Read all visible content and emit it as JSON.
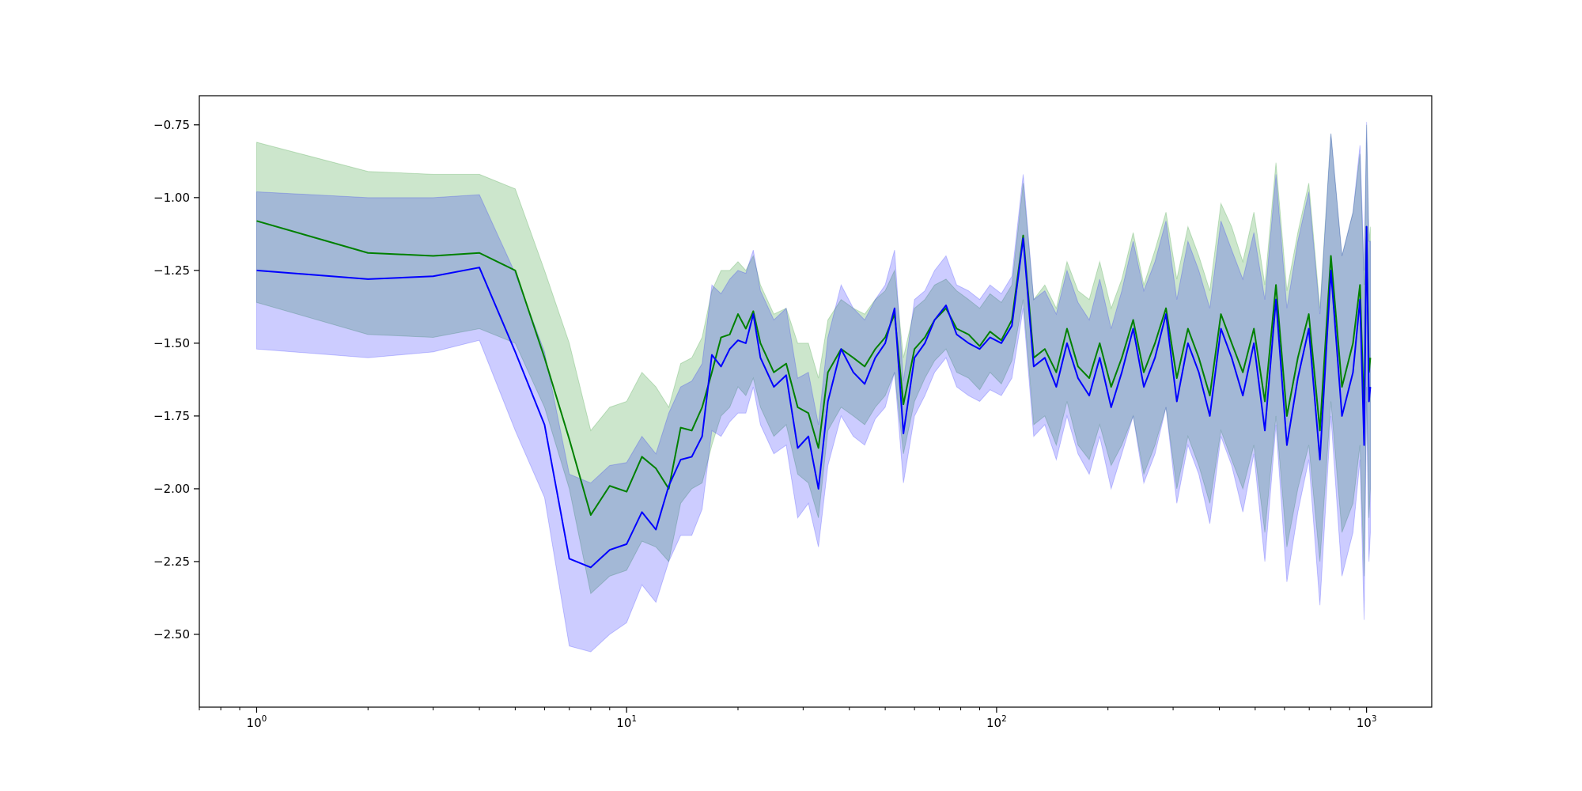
{
  "colors": {
    "series_a_line": "#008000",
    "series_a_band": "#008000",
    "series_b_line": "#0000ff",
    "series_b_band": "#0000ff",
    "axes": "#000000",
    "background": "#ffffff"
  },
  "chart_data": {
    "type": "line",
    "title": "",
    "xlabel": "",
    "ylabel": "",
    "xscale": "log",
    "xlim": [
      0.7,
      1500
    ],
    "ylim": [
      -2.75,
      -0.65
    ],
    "grid": false,
    "legend": "none",
    "x_ticks": [
      {
        "value": 1,
        "base": "10",
        "exp": "0"
      },
      {
        "value": 10,
        "base": "10",
        "exp": "1"
      },
      {
        "value": 100,
        "base": "10",
        "exp": "2"
      },
      {
        "value": 1000,
        "base": "10",
        "exp": "3"
      }
    ],
    "y_ticks": [
      {
        "value": -0.75,
        "label": "−0.75"
      },
      {
        "value": -1.0,
        "label": "−1.00"
      },
      {
        "value": -1.25,
        "label": "−1.25"
      },
      {
        "value": -1.5,
        "label": "−1.50"
      },
      {
        "value": -1.75,
        "label": "−1.75"
      },
      {
        "value": -2.0,
        "label": "−2.00"
      },
      {
        "value": -2.25,
        "label": "−2.25"
      },
      {
        "value": -2.5,
        "label": "−2.50"
      }
    ],
    "series": [
      {
        "color": "#008000",
        "x": [
          1,
          2,
          3,
          4,
          5,
          6,
          7,
          8,
          9,
          10,
          11,
          12,
          13,
          14,
          15,
          16,
          17,
          18,
          19,
          20,
          21,
          22,
          23,
          25,
          27,
          29,
          31,
          33,
          35,
          38,
          41,
          44,
          47,
          50,
          53,
          56,
          60,
          64,
          68,
          73,
          78,
          84,
          90,
          96,
          103,
          110,
          118,
          126,
          135,
          145,
          155,
          166,
          178,
          190,
          204,
          218,
          234,
          250,
          268,
          287,
          307,
          329,
          352,
          377,
          404,
          432,
          463,
          496,
          531,
          569,
          609,
          652,
          698,
          748,
          801,
          858,
          919,
          960,
          985,
          1000,
          1015,
          1024
        ],
        "y": [
          -1.08,
          -1.19,
          -1.2,
          -1.19,
          -1.25,
          -1.55,
          -1.83,
          -2.09,
          -1.99,
          -2.01,
          -1.89,
          -1.93,
          -2.0,
          -1.79,
          -1.8,
          -1.72,
          -1.6,
          -1.48,
          -1.47,
          -1.4,
          -1.45,
          -1.39,
          -1.5,
          -1.6,
          -1.57,
          -1.72,
          -1.74,
          -1.86,
          -1.6,
          -1.52,
          -1.55,
          -1.58,
          -1.52,
          -1.48,
          -1.4,
          -1.71,
          -1.52,
          -1.48,
          -1.42,
          -1.38,
          -1.45,
          -1.47,
          -1.51,
          -1.46,
          -1.49,
          -1.42,
          -1.13,
          -1.55,
          -1.52,
          -1.6,
          -1.45,
          -1.58,
          -1.62,
          -1.5,
          -1.65,
          -1.55,
          -1.42,
          -1.6,
          -1.5,
          -1.38,
          -1.62,
          -1.45,
          -1.55,
          -1.68,
          -1.4,
          -1.5,
          -1.6,
          -1.45,
          -1.7,
          -1.3,
          -1.75,
          -1.55,
          -1.4,
          -1.8,
          -1.2,
          -1.65,
          -1.5,
          -1.3,
          -1.75,
          -1.1,
          -1.6,
          -1.55
        ],
        "lower": [
          -1.36,
          -1.47,
          -1.48,
          -1.45,
          -1.5,
          -1.72,
          -2.0,
          -2.36,
          -2.3,
          -2.28,
          -2.18,
          -2.2,
          -2.25,
          -2.05,
          -2.0,
          -1.98,
          -1.85,
          -1.75,
          -1.72,
          -1.65,
          -1.68,
          -1.62,
          -1.72,
          -1.82,
          -1.78,
          -1.95,
          -1.98,
          -2.1,
          -1.8,
          -1.72,
          -1.75,
          -1.78,
          -1.72,
          -1.68,
          -1.6,
          -1.88,
          -1.7,
          -1.62,
          -1.56,
          -1.52,
          -1.6,
          -1.62,
          -1.66,
          -1.6,
          -1.64,
          -1.56,
          -1.35,
          -1.78,
          -1.75,
          -1.85,
          -1.7,
          -1.85,
          -1.9,
          -1.78,
          -1.92,
          -1.85,
          -1.75,
          -1.95,
          -1.85,
          -1.72,
          -2.0,
          -1.82,
          -1.92,
          -2.05,
          -1.8,
          -1.9,
          -2.0,
          -1.85,
          -2.15,
          -1.75,
          -2.2,
          -2.0,
          -1.85,
          -2.25,
          -1.7,
          -2.15,
          -2.05,
          -1.85,
          -2.3,
          -1.65,
          -2.1,
          -2.0
        ],
        "upper": [
          -0.81,
          -0.91,
          -0.92,
          -0.92,
          -0.97,
          -1.25,
          -1.5,
          -1.8,
          -1.72,
          -1.7,
          -1.6,
          -1.65,
          -1.72,
          -1.57,
          -1.55,
          -1.48,
          -1.32,
          -1.25,
          -1.25,
          -1.22,
          -1.25,
          -1.2,
          -1.3,
          -1.4,
          -1.38,
          -1.5,
          -1.5,
          -1.62,
          -1.42,
          -1.35,
          -1.38,
          -1.4,
          -1.35,
          -1.32,
          -1.25,
          -1.55,
          -1.38,
          -1.35,
          -1.3,
          -1.28,
          -1.32,
          -1.35,
          -1.38,
          -1.33,
          -1.36,
          -1.3,
          -0.95,
          -1.35,
          -1.3,
          -1.38,
          -1.22,
          -1.32,
          -1.35,
          -1.22,
          -1.38,
          -1.28,
          -1.12,
          -1.3,
          -1.18,
          -1.05,
          -1.28,
          -1.1,
          -1.2,
          -1.32,
          -1.02,
          -1.1,
          -1.22,
          -1.05,
          -1.3,
          -0.88,
          -1.32,
          -1.12,
          -0.95,
          -1.38,
          -0.78,
          -1.2,
          -1.05,
          -0.85,
          -1.3,
          -0.75,
          -1.15,
          -1.1
        ]
      },
      {
        "color": "#0000ff",
        "x": [
          1,
          2,
          3,
          4,
          5,
          6,
          7,
          8,
          9,
          10,
          11,
          12,
          13,
          14,
          15,
          16,
          17,
          18,
          19,
          20,
          21,
          22,
          23,
          25,
          27,
          29,
          31,
          33,
          35,
          38,
          41,
          44,
          47,
          50,
          53,
          56,
          60,
          64,
          68,
          73,
          78,
          84,
          90,
          96,
          103,
          110,
          118,
          126,
          135,
          145,
          155,
          166,
          178,
          190,
          204,
          218,
          234,
          250,
          268,
          287,
          307,
          329,
          352,
          377,
          404,
          432,
          463,
          496,
          531,
          569,
          609,
          652,
          698,
          748,
          801,
          858,
          919,
          960,
          985,
          1000,
          1015,
          1024
        ],
        "y": [
          -1.25,
          -1.28,
          -1.27,
          -1.24,
          -1.53,
          -1.78,
          -2.24,
          -2.27,
          -2.21,
          -2.19,
          -2.08,
          -2.14,
          -1.99,
          -1.9,
          -1.89,
          -1.82,
          -1.54,
          -1.58,
          -1.52,
          -1.49,
          -1.5,
          -1.4,
          -1.55,
          -1.65,
          -1.61,
          -1.86,
          -1.82,
          -2.0,
          -1.7,
          -1.52,
          -1.6,
          -1.64,
          -1.55,
          -1.5,
          -1.38,
          -1.81,
          -1.55,
          -1.5,
          -1.42,
          -1.37,
          -1.47,
          -1.5,
          -1.52,
          -1.48,
          -1.5,
          -1.44,
          -1.14,
          -1.58,
          -1.55,
          -1.65,
          -1.5,
          -1.62,
          -1.68,
          -1.55,
          -1.72,
          -1.6,
          -1.45,
          -1.65,
          -1.55,
          -1.4,
          -1.7,
          -1.5,
          -1.6,
          -1.75,
          -1.45,
          -1.55,
          -1.68,
          -1.5,
          -1.8,
          -1.35,
          -1.85,
          -1.62,
          -1.45,
          -1.9,
          -1.25,
          -1.75,
          -1.6,
          -1.35,
          -1.85,
          -1.1,
          -1.7,
          -1.65
        ],
        "lower": [
          -1.52,
          -1.55,
          -1.53,
          -1.49,
          -1.8,
          -2.03,
          -2.54,
          -2.56,
          -2.5,
          -2.46,
          -2.33,
          -2.39,
          -2.25,
          -2.16,
          -2.16,
          -2.07,
          -1.8,
          -1.82,
          -1.77,
          -1.74,
          -1.74,
          -1.65,
          -1.78,
          -1.88,
          -1.85,
          -2.1,
          -2.05,
          -2.2,
          -1.92,
          -1.75,
          -1.82,
          -1.85,
          -1.76,
          -1.72,
          -1.6,
          -1.98,
          -1.75,
          -1.68,
          -1.6,
          -1.55,
          -1.65,
          -1.68,
          -1.7,
          -1.66,
          -1.68,
          -1.62,
          -1.38,
          -1.82,
          -1.78,
          -1.9,
          -1.75,
          -1.88,
          -1.95,
          -1.82,
          -2.0,
          -1.88,
          -1.75,
          -1.98,
          -1.88,
          -1.72,
          -2.05,
          -1.85,
          -1.95,
          -2.12,
          -1.82,
          -1.92,
          -2.08,
          -1.88,
          -2.25,
          -1.78,
          -2.32,
          -2.08,
          -1.9,
          -2.4,
          -1.75,
          -2.3,
          -2.15,
          -1.9,
          -2.45,
          -1.7,
          -2.25,
          -2.15
        ],
        "upper": [
          -0.98,
          -1.0,
          -1.0,
          -0.99,
          -1.26,
          -1.53,
          -1.95,
          -1.98,
          -1.92,
          -1.91,
          -1.82,
          -1.88,
          -1.74,
          -1.65,
          -1.63,
          -1.57,
          -1.3,
          -1.33,
          -1.28,
          -1.25,
          -1.26,
          -1.18,
          -1.32,
          -1.42,
          -1.38,
          -1.62,
          -1.6,
          -1.78,
          -1.48,
          -1.3,
          -1.38,
          -1.42,
          -1.35,
          -1.3,
          -1.18,
          -1.63,
          -1.35,
          -1.32,
          -1.25,
          -1.2,
          -1.3,
          -1.32,
          -1.35,
          -1.3,
          -1.33,
          -1.27,
          -0.92,
          -1.35,
          -1.32,
          -1.4,
          -1.25,
          -1.36,
          -1.42,
          -1.28,
          -1.45,
          -1.32,
          -1.15,
          -1.32,
          -1.22,
          -1.08,
          -1.35,
          -1.15,
          -1.25,
          -1.38,
          -1.08,
          -1.18,
          -1.28,
          -1.12,
          -1.35,
          -0.92,
          -1.38,
          -1.15,
          -0.98,
          -1.4,
          -0.78,
          -1.2,
          -1.05,
          -0.82,
          -1.25,
          -0.74,
          -1.15,
          -1.15
        ]
      }
    ]
  }
}
